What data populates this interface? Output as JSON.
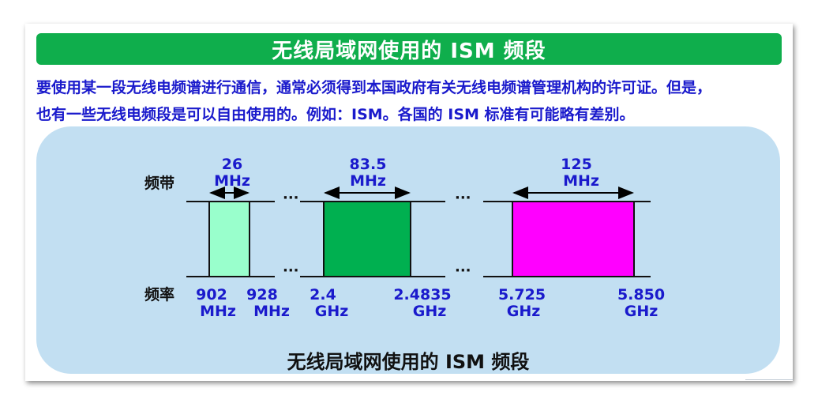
{
  "title": "无线局域网使用的 ISM 频段",
  "paragraph": {
    "line1": "要使用某一段无线电频谱进行通信，通常必须得到本国政府有关无线电频谱管理机构的许可证。但是，",
    "line2": "也有一些无线电频段是可以自由使用的。例如：ISM。各国的 ISM 标准有可能略有差别。"
  },
  "diagram": {
    "band_label": "频带",
    "freq_label": "频率",
    "ellipsis": "···",
    "bands": [
      {
        "width_value": "26",
        "width_unit": "MHz",
        "start_value": "902",
        "start_unit": "MHz",
        "end_value": "928",
        "end_unit": "MHz",
        "color": "#99ffcc"
      },
      {
        "width_value": "83.5",
        "width_unit": "MHz",
        "start_value": "2.4",
        "start_unit": "GHz",
        "end_value": "2.4835",
        "end_unit": "GHz",
        "color": "#00b050"
      },
      {
        "width_value": "125",
        "width_unit": "MHz",
        "start_value": "5.725",
        "start_unit": "GHz",
        "end_value": "5.850",
        "end_unit": "GHz",
        "color": "#ff00ff"
      }
    ]
  },
  "caption": "无线局域网使用的 ISM 频段",
  "colors": {
    "title_bg": "#0fae4c",
    "text_blue": "#1a1acc",
    "panel_bg": "#c2dff2"
  }
}
